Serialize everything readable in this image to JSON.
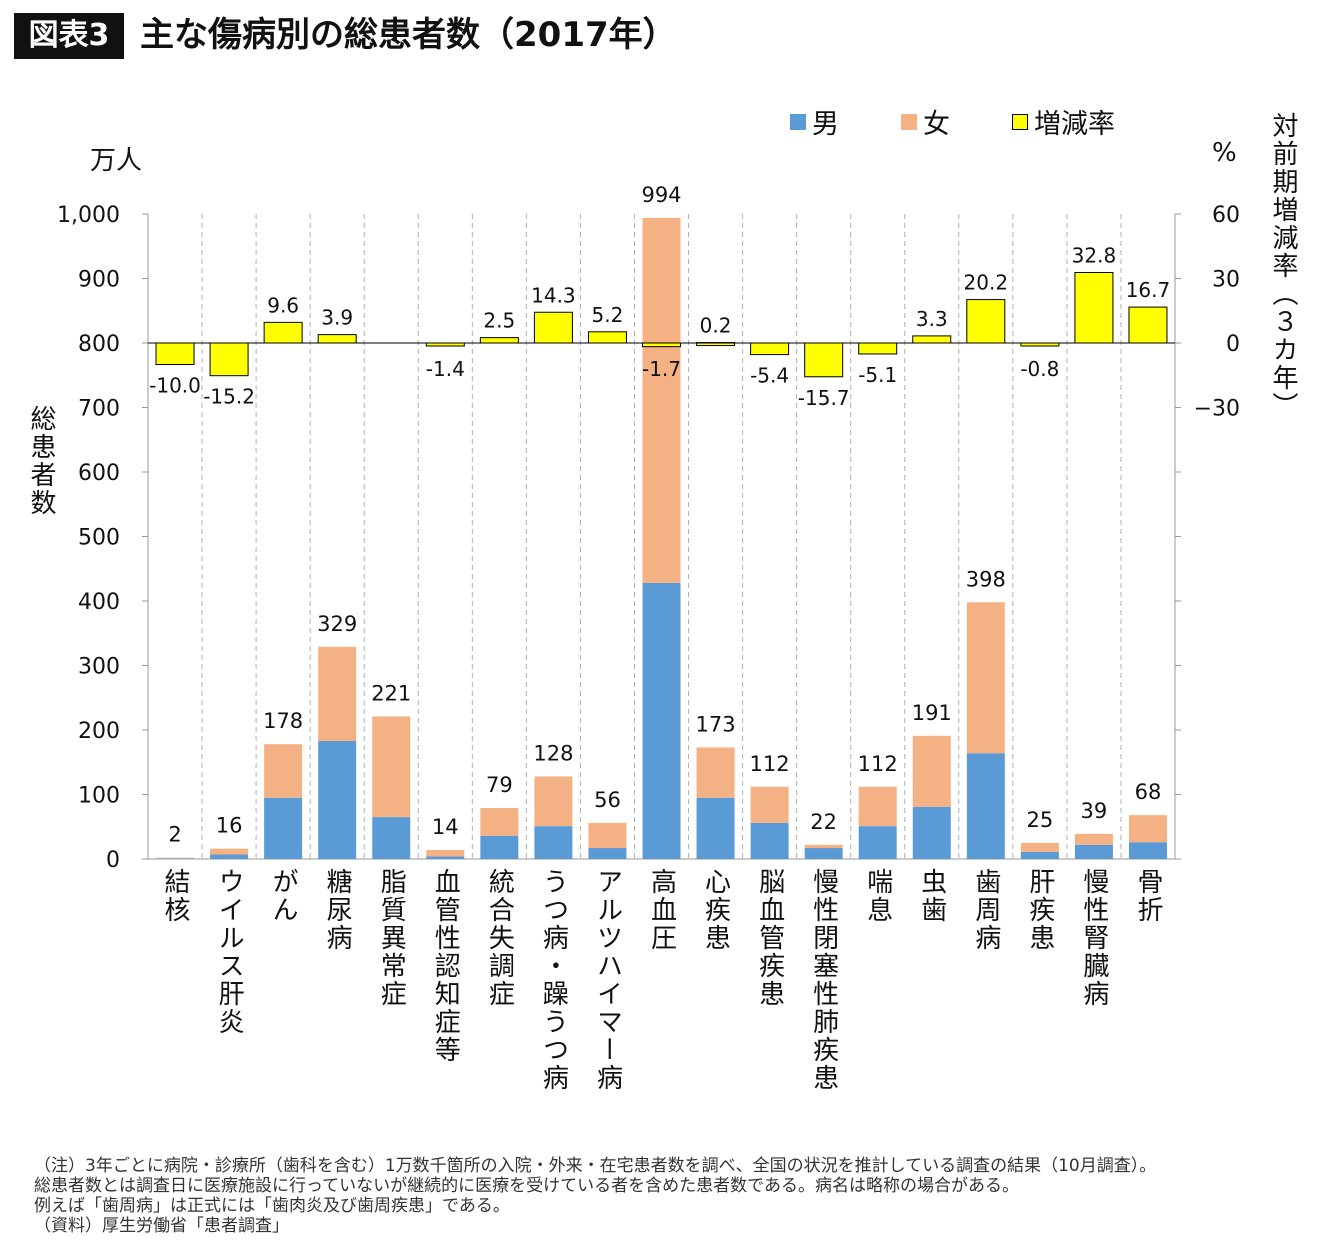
{
  "header": {
    "badge": "図表3",
    "title": "主な傷病別の総患者数（2017年）"
  },
  "chart_data": {
    "type": "bar",
    "title": "主な傷病別の総患者数（2017年）",
    "categories": [
      "結核",
      "ウイルス肝炎",
      "がん",
      "糖尿病",
      "脂質異常症",
      "血管性認知症等",
      "統合失調症",
      "うつ病・躁うつ病",
      "アルツハイマー病",
      "高血圧",
      "心疾患",
      "脳血管疾患",
      "慢性閉塞性肺疾患",
      "喘息",
      "虫歯",
      "歯周病",
      "肝疾患",
      "慢性腎臓病",
      "骨折"
    ],
    "totals": [
      2,
      16,
      178,
      329,
      221,
      14,
      79,
      128,
      56,
      994,
      173,
      112,
      22,
      112,
      191,
      398,
      25,
      39,
      68
    ],
    "total_labels": [
      "2",
      "16",
      "178",
      "329",
      "221",
      "14",
      "79",
      "128",
      "56",
      "994",
      "173",
      "112",
      "22",
      "112",
      "191",
      "398",
      "25",
      "39",
      "68"
    ],
    "series": [
      {
        "name": "男",
        "color": "#5b9bd5",
        "values": [
          1,
          7,
          95,
          183,
          65,
          4,
          36,
          51,
          17,
          428,
          95,
          56,
          17,
          51,
          81,
          164,
          11,
          22,
          26
        ]
      },
      {
        "name": "女",
        "color": "#f4b183",
        "values": [
          1,
          9,
          83,
          146,
          156,
          10,
          43,
          77,
          39,
          566,
          78,
          56,
          5,
          61,
          110,
          234,
          14,
          17,
          42
        ]
      },
      {
        "name": "増減率",
        "color": "#ffff00",
        "axis": "right",
        "values": [
          -10.0,
          -15.2,
          9.6,
          3.9,
          0,
          -1.4,
          2.5,
          14.3,
          5.2,
          -1.7,
          0.2,
          -5.4,
          -15.7,
          -5.1,
          3.3,
          20.2,
          -0.8,
          32.8,
          16.7
        ],
        "labels": [
          "-10.0",
          "-15.2",
          "9.6",
          "3.9",
          "",
          "-1.4",
          "2.5",
          "14.3",
          "5.2",
          "-1.7",
          "0.2",
          "-5.4",
          "-15.7",
          "-5.1",
          "3.3",
          "20.2",
          "-0.8",
          "32.8",
          "16.7"
        ]
      }
    ],
    "ylabel": "総患者数",
    "yunit": "万人",
    "ylim": [
      0,
      1000
    ],
    "yticks": [
      "0",
      "100",
      "200",
      "300",
      "400",
      "500",
      "600",
      "700",
      "800",
      "900",
      "1,000"
    ],
    "y2label": "対前期増減率（３カ年）",
    "y2unit": "%",
    "y2lim": [
      -200,
      60
    ],
    "y2ticks": [
      "60",
      "30",
      "0",
      "−30"
    ],
    "legend": [
      "男",
      "女",
      "増減率"
    ],
    "legend_position": "top-right"
  },
  "notes": [
    "（注）3年ごとに病院・診療所（歯科を含む）1万数千箇所の入院・外来・在宅患者数を調べ、全国の状況を推計している調査の結果（10月調査）。",
    "総患者数とは調査日に医療施設に行っていないが継続的に医療を受けている者を含めた患者数である。病名は略称の場合がある。",
    "例えば「歯周病」は正式には「歯肉炎及び歯周疾患」である。",
    "（資料）厚生労働省「患者調査」"
  ]
}
